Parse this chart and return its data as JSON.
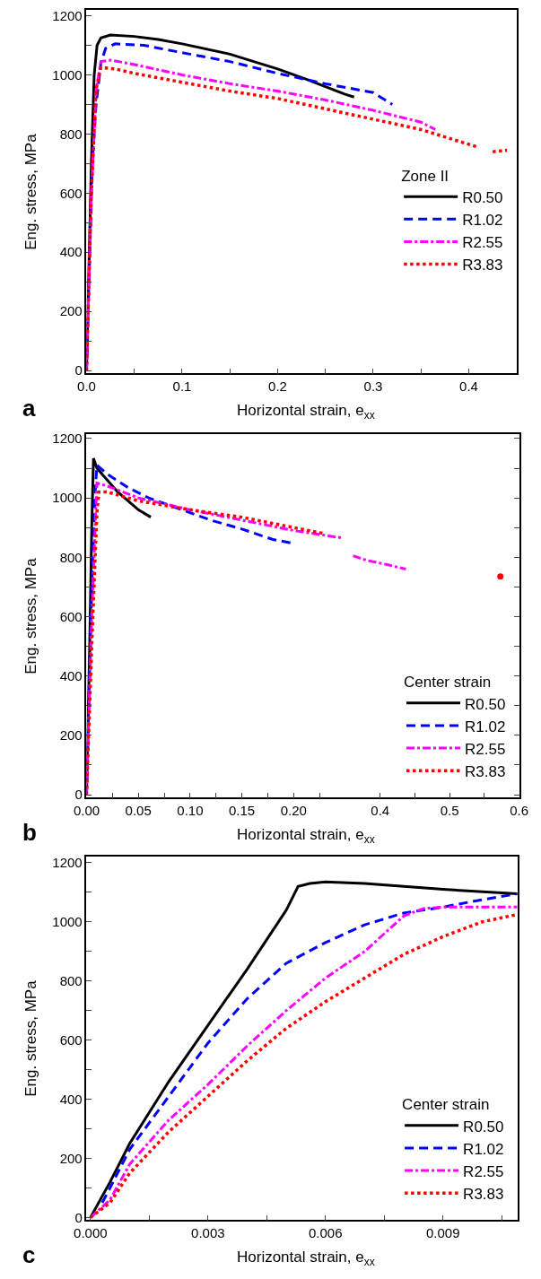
{
  "chart_data": [
    {
      "type": "line",
      "xlabel": "Horizontal strain, e$_{xx}$",
      "ylabel": "Eng. stress, MPa",
      "legend_title": "Zone II",
      "legend": "right",
      "grid": false,
      "annotations": [
        "a"
      ],
      "xlim": [
        0,
        0.45
      ],
      "ylim": [
        -10,
        1220
      ],
      "xticks": [
        {
          "value": 0,
          "label": "0.0"
        },
        {
          "value": 0.05,
          "label": null
        },
        0.1,
        {
          "value": 0.15,
          "label": null
        },
        0.2,
        {
          "value": 0.25,
          "label": null
        },
        0.3,
        {
          "value": 0.35,
          "label": null
        },
        0.4
      ],
      "yticks": [
        0,
        {
          "value": 100,
          "label": null
        },
        200,
        {
          "value": 300,
          "label": null
        },
        400,
        {
          "value": 500,
          "label": null
        },
        600,
        {
          "value": 700,
          "label": null
        },
        800,
        {
          "value": 900,
          "label": null
        },
        1000,
        {
          "value": 1100,
          "label": null
        },
        1200
      ],
      "series": [
        {
          "name": "R0.50",
          "color": "#000000",
          "line_style": "solid",
          "x": [
            0,
            0.005,
            0.008,
            0.011,
            0.015,
            0.025,
            0.05,
            0.075,
            0.1,
            0.15,
            0.2,
            0.23,
            0.25,
            0.27,
            0.28
          ],
          "values": [
            0,
            700,
            1000,
            1100,
            1125,
            1135,
            1130,
            1120,
            1105,
            1070,
            1020,
            985,
            960,
            935,
            925
          ]
        },
        {
          "name": "R1.02",
          "color": "#0000ff",
          "line_style": "dashed",
          "x": [
            0,
            0.006,
            0.01,
            0.015,
            0.02,
            0.03,
            0.06,
            0.1,
            0.15,
            0.2,
            0.25,
            0.3,
            0.32
          ],
          "values": [
            0,
            700,
            900,
            1040,
            1090,
            1105,
            1100,
            1075,
            1045,
            1005,
            970,
            940,
            900
          ]
        },
        {
          "name": "R2.55",
          "color": "#ff00ff",
          "line_style": "dashdot",
          "x": [
            0,
            0.005,
            0.01,
            0.015,
            0.025,
            0.05,
            0.1,
            0.15,
            0.2,
            0.25,
            0.3,
            0.35,
            0.365
          ],
          "values": [
            0,
            600,
            950,
            1045,
            1050,
            1035,
            1000,
            970,
            945,
            915,
            880,
            840,
            815
          ]
        },
        {
          "name": "R3.83",
          "color": "#ff0000",
          "line_style": "dotted",
          "x": [
            0,
            0.005,
            0.01,
            0.015,
            0.03,
            0.05,
            0.1,
            0.15,
            0.2,
            0.25,
            0.3,
            0.35,
            0.4,
            0.41,
            0.418,
            0.425,
            0.44
          ],
          "values": [
            0,
            600,
            950,
            1025,
            1020,
            1005,
            975,
            945,
            920,
            885,
            850,
            815,
            765,
            755,
            null,
            740,
            745
          ]
        }
      ]
    },
    {
      "type": "line",
      "xlabel": "Horizontal strain, e$_{xx}$",
      "ylabel": "Eng. stress, MPa",
      "legend_title": "Center strain",
      "legend": "bottom right",
      "grid": false,
      "annotations": [
        "b"
      ],
      "xlim": [
        0,
        0.25
      ],
      "ylim": [
        -10,
        1215
      ],
      "xticks": [
        {
          "value": 0,
          "label": "0.00"
        },
        {
          "value": 0.025,
          "label": null
        },
        0.05,
        {
          "value": 0.075,
          "label": null
        },
        {
          "value": 0.1,
          "label": "0.10"
        },
        {
          "value": 0.125,
          "label": null
        },
        0.15,
        {
          "value": 0.175,
          "label": null
        },
        {
          "value": 0.2,
          "label": "0.20"
        },
        {
          "value": 0.225,
          "label": null
        }
      ],
      "yticks": [
        0,
        {
          "value": 100,
          "label": null
        },
        200,
        {
          "value": 300,
          "label": null
        },
        400,
        {
          "value": 500,
          "label": null
        },
        600,
        {
          "value": 700,
          "label": null
        },
        800,
        {
          "value": 900,
          "label": null
        },
        1000,
        {
          "value": 1100,
          "label": null
        },
        1200
      ],
      "series": [
        {
          "name": "R0.50",
          "color": "#000000",
          "line_style": "solid",
          "x": [
            0,
            0.003,
            0.005,
            0.0067,
            0.01,
            0.02,
            0.03,
            0.04,
            0.05,
            0.062
          ],
          "values": [
            0,
            500,
            900,
            1133,
            1100,
            1060,
            1020,
            990,
            960,
            935
          ]
        },
        {
          "name": "R1.02",
          "color": "#0000ff",
          "line_style": "dashed",
          "x": [
            0,
            0.005,
            0.008,
            0.01,
            0.02,
            0.04,
            0.06,
            0.08,
            0.1,
            0.12,
            0.15,
            0.18,
            0.198
          ],
          "values": [
            0,
            700,
            1000,
            1110,
            1080,
            1035,
            1000,
            975,
            950,
            925,
            895,
            860,
            848
          ]
        },
        {
          "name": "R2.55",
          "color": "#ff00ff",
          "line_style": "dashdot",
          "x": [
            0,
            0.005,
            0.01,
            0.02,
            0.05,
            0.1,
            0.15,
            0.2,
            0.247
          ],
          "values": [
            0,
            600,
            1050,
            1040,
            1000,
            960,
            925,
            890,
            865
          ]
        },
        {
          "name": "R3.83",
          "color": "#ff0000",
          "line_style": "dotted",
          "x": [
            0,
            0.005,
            0.01,
            0.012,
            0.02,
            0.05,
            0.1,
            0.15,
            0.2,
            0.229
          ],
          "values": [
            0,
            500,
            950,
            1020,
            1020,
            990,
            960,
            935,
            900,
            880
          ]
        }
      ]
    },
    {
      "type": "line",
      "grid": false,
      "tick_labels": "x",
      "xlim": [
        0.35,
        0.6
      ],
      "ylim": [
        -10,
        1215
      ],
      "xticks": [
        0.4,
        {
          "value": 0.45,
          "label": null
        },
        0.5,
        {
          "value": 0.55,
          "label": null
        },
        0.6
      ],
      "yticks": [
        0,
        {
          "value": 100,
          "label": null
        },
        200,
        {
          "value": 300,
          "label": null
        },
        400,
        {
          "value": 500,
          "label": null
        },
        600,
        {
          "value": 700,
          "label": null
        },
        800,
        {
          "value": 900,
          "label": null
        },
        1000,
        {
          "value": 1100,
          "label": null
        },
        1200
      ],
      "series": [
        {
          "color": "#ff00ff",
          "line_style": "dashdot",
          "x": [
            0.361,
            0.38,
            0.41,
            0.437
          ],
          "values": [
            805,
            790,
            775,
            760
          ]
        },
        {
          "color": "#ff0000",
          "line_style": "dotted",
          "marker": "circle",
          "x": [
            0.573
          ],
          "values": [
            735
          ]
        }
      ]
    },
    {
      "type": "line",
      "xlabel": "Horizontal strain, e$_{xx}$",
      "ylabel": "Eng. stress, MPa",
      "legend_title": "Center strain",
      "legend": "bottom right",
      "grid": false,
      "annotations": [
        "c"
      ],
      "xlim": [
        -0.0001,
        0.0109
      ],
      "ylim": [
        -9,
        1221
      ],
      "xticks": [
        {
          "value": 0,
          "label": "0.000"
        },
        {
          "value": 0.0015,
          "label": null
        },
        0.003,
        {
          "value": 0.0045,
          "label": null
        },
        0.006,
        {
          "value": 0.0075,
          "label": null
        },
        0.009,
        {
          "value": 0.0105,
          "label": null
        }
      ],
      "yticks": [
        0,
        {
          "value": 100,
          "label": null
        },
        200,
        {
          "value": 300,
          "label": null
        },
        400,
        {
          "value": 500,
          "label": null
        },
        600,
        {
          "value": 700,
          "label": null
        },
        800,
        {
          "value": 900,
          "label": null
        },
        1000,
        {
          "value": 1100,
          "label": null
        },
        1200
      ],
      "series": [
        {
          "name": "R0.50",
          "color": "#000000",
          "line_style": "solid",
          "x": [
            0,
            0.0005,
            0.001,
            0.002,
            0.003,
            0.004,
            0.0045,
            0.005,
            0.0053,
            0.0056,
            0.006,
            0.007,
            0.008,
            0.009,
            0.0109
          ],
          "values": [
            0,
            120,
            250,
            460,
            650,
            840,
            940,
            1040,
            1120,
            1130,
            1135,
            1130,
            1120,
            1110,
            1095
          ]
        },
        {
          "name": "R1.02",
          "color": "#0000ff",
          "line_style": "dashed",
          "x": [
            0.0003,
            0.0005,
            0.001,
            0.002,
            0.003,
            0.004,
            0.005,
            0.006,
            0.007,
            0.008,
            0.009,
            0.01,
            0.0109
          ],
          "values": [
            50,
            100,
            230,
            410,
            590,
            740,
            860,
            930,
            990,
            1030,
            1050,
            1075,
            1095
          ]
        },
        {
          "name": "R2.55",
          "color": "#ff00ff",
          "line_style": "dashdot",
          "x": [
            0,
            0.0005,
            0.001,
            0.002,
            0.003,
            0.004,
            0.005,
            0.006,
            0.007,
            0.0075,
            0.008,
            0.0085,
            0.009,
            0.0109
          ],
          "values": [
            0,
            60,
            180,
            330,
            450,
            580,
            700,
            810,
            900,
            960,
            1020,
            1045,
            1050,
            1050
          ]
        },
        {
          "name": "R3.83",
          "color": "#ff0000",
          "line_style": "dotted",
          "x": [
            0,
            0.0005,
            0.001,
            0.002,
            0.003,
            0.004,
            0.005,
            0.006,
            0.007,
            0.008,
            0.009,
            0.01,
            0.0109
          ],
          "values": [
            0,
            50,
            150,
            290,
            410,
            530,
            640,
            730,
            810,
            890,
            950,
            1000,
            1025
          ]
        }
      ]
    }
  ]
}
